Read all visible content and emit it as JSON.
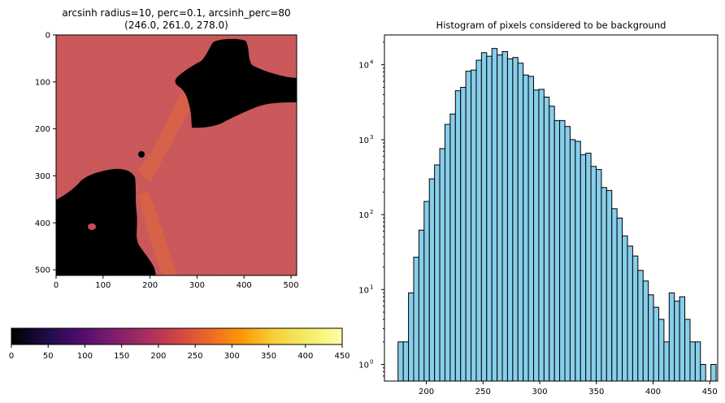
{
  "image_panel": {
    "title_line1": "arcsinh radius=10, perc=0.1, arcsinh_perc=80",
    "title_line2": "(246.0, 261.0, 278.0)",
    "x_ticks": [
      "0",
      "100",
      "200",
      "300",
      "400",
      "500"
    ],
    "y_ticks": [
      "0",
      "100",
      "200",
      "300",
      "400",
      "500"
    ],
    "colormap": "inferno",
    "background_color": "#c44d52",
    "mask_color": "#000000"
  },
  "colorbar": {
    "ticks": [
      "0",
      "50",
      "100",
      "150",
      "200",
      "250",
      "300",
      "350",
      "400",
      "450"
    ],
    "range": [
      0,
      450
    ],
    "colormap": "inferno"
  },
  "chart_data": {
    "type": "bar",
    "title": "Histogram of pixels considered to be background",
    "xlabel": "",
    "ylabel": "",
    "y_scale": "log",
    "x_ticks": [
      "200",
      "250",
      "300",
      "350",
      "400",
      "450"
    ],
    "y_ticks": [
      "10^0",
      "10^1",
      "10^2",
      "10^3",
      "10^4"
    ],
    "xlim": [
      163,
      457
    ],
    "ylim": [
      0.6,
      25000
    ],
    "bar_color": "#87ceeb",
    "edge_color": "#000000",
    "bin_start": 175,
    "bin_width": 4.6,
    "values": [
      2,
      2,
      9,
      27,
      62,
      150,
      300,
      460,
      760,
      1600,
      2200,
      4500,
      5000,
      8200,
      8500,
      11500,
      14500,
      13000,
      16500,
      13500,
      15000,
      12000,
      12500,
      10500,
      7300,
      7000,
      4600,
      4700,
      3700,
      2800,
      1800,
      1800,
      1500,
      1000,
      950,
      630,
      660,
      440,
      400,
      230,
      210,
      120,
      90,
      52,
      38,
      28,
      18,
      13,
      8.5,
      5.8,
      4,
      2,
      9,
      7,
      8,
      4,
      2,
      2,
      1,
      0,
      1
    ]
  }
}
